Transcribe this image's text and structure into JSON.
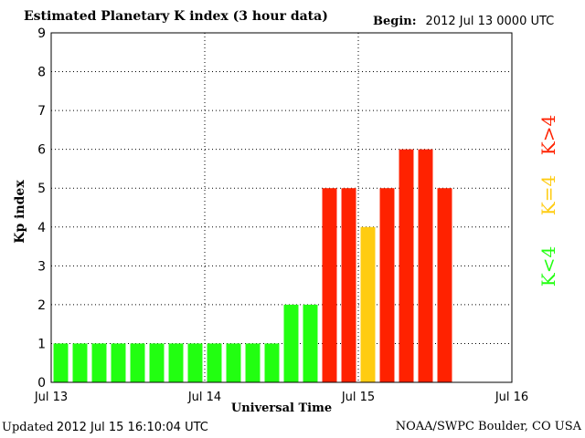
{
  "header": {
    "title": "Estimated Planetary K index (3 hour data)",
    "begin_label": "Begin:",
    "begin_value": "2012 Jul 13 0000 UTC"
  },
  "footer": {
    "updated_label": "Updated",
    "updated_value": "2012 Jul 15 16:10:04 UTC",
    "credit": "NOAA/SWPC Boulder, CO USA"
  },
  "legend": {
    "low": "K<4",
    "mid": "K=4",
    "high": "K>4"
  },
  "colors": {
    "low": "#22ff11",
    "mid": "#ffcc11",
    "high": "#ff2200",
    "grid": "#000000"
  },
  "chart_data": {
    "type": "bar",
    "title": "Estimated Planetary K index (3 hour data)",
    "xlabel": "Universal Time",
    "ylabel": "Kp index",
    "ylim": [
      0,
      9
    ],
    "yticks": [
      0,
      1,
      2,
      3,
      4,
      5,
      6,
      7,
      8,
      9
    ],
    "xticks": [
      "Jul 13",
      "Jul 14",
      "Jul 15",
      "Jul 16"
    ],
    "x_interval_hours": 3,
    "slots_total": 24,
    "grid": true,
    "values": [
      1,
      1,
      1,
      1,
      1,
      1,
      1,
      1,
      1,
      1,
      1,
      1,
      2,
      2,
      5,
      5,
      4,
      5,
      6,
      6,
      5
    ]
  }
}
